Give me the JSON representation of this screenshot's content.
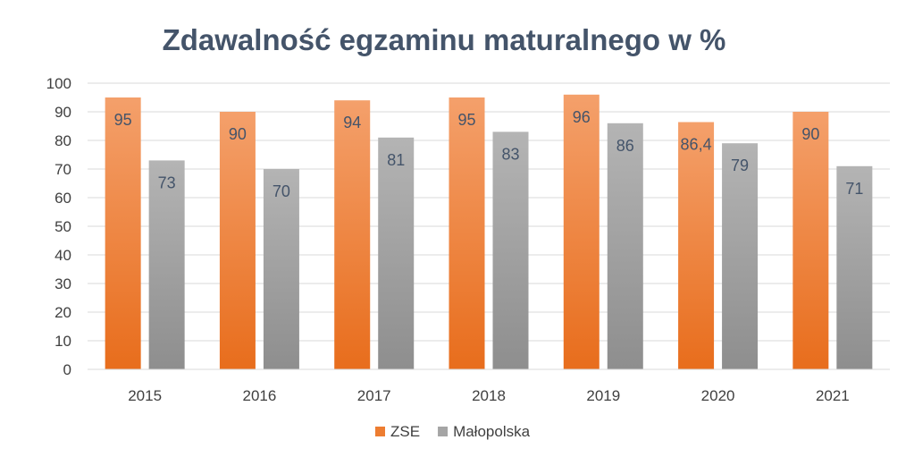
{
  "chart_data": {
    "type": "bar",
    "title": "Zdawalność egzaminu maturalnego w %",
    "categories": [
      "2015",
      "2016",
      "2017",
      "2018",
      "2019",
      "2020",
      "2021"
    ],
    "series": [
      {
        "name": "ZSE",
        "values": [
          95,
          90,
          94,
          95,
          96,
          86.4,
          90
        ],
        "labels": [
          "95",
          "90",
          "94",
          "95",
          "96",
          "86,4",
          "90"
        ],
        "color": "#ed7d31"
      },
      {
        "name": "Małopolska",
        "values": [
          73,
          70,
          81,
          83,
          86,
          79,
          71
        ],
        "labels": [
          "73",
          "70",
          "81",
          "83",
          "86",
          "79",
          "71"
        ],
        "color": "#a5a5a5"
      }
    ],
    "ylim": [
      0,
      100
    ],
    "yticks": [
      "0",
      "10",
      "20",
      "30",
      "40",
      "50",
      "60",
      "70",
      "80",
      "90",
      "100"
    ],
    "grid": true,
    "legend": "bottom"
  }
}
